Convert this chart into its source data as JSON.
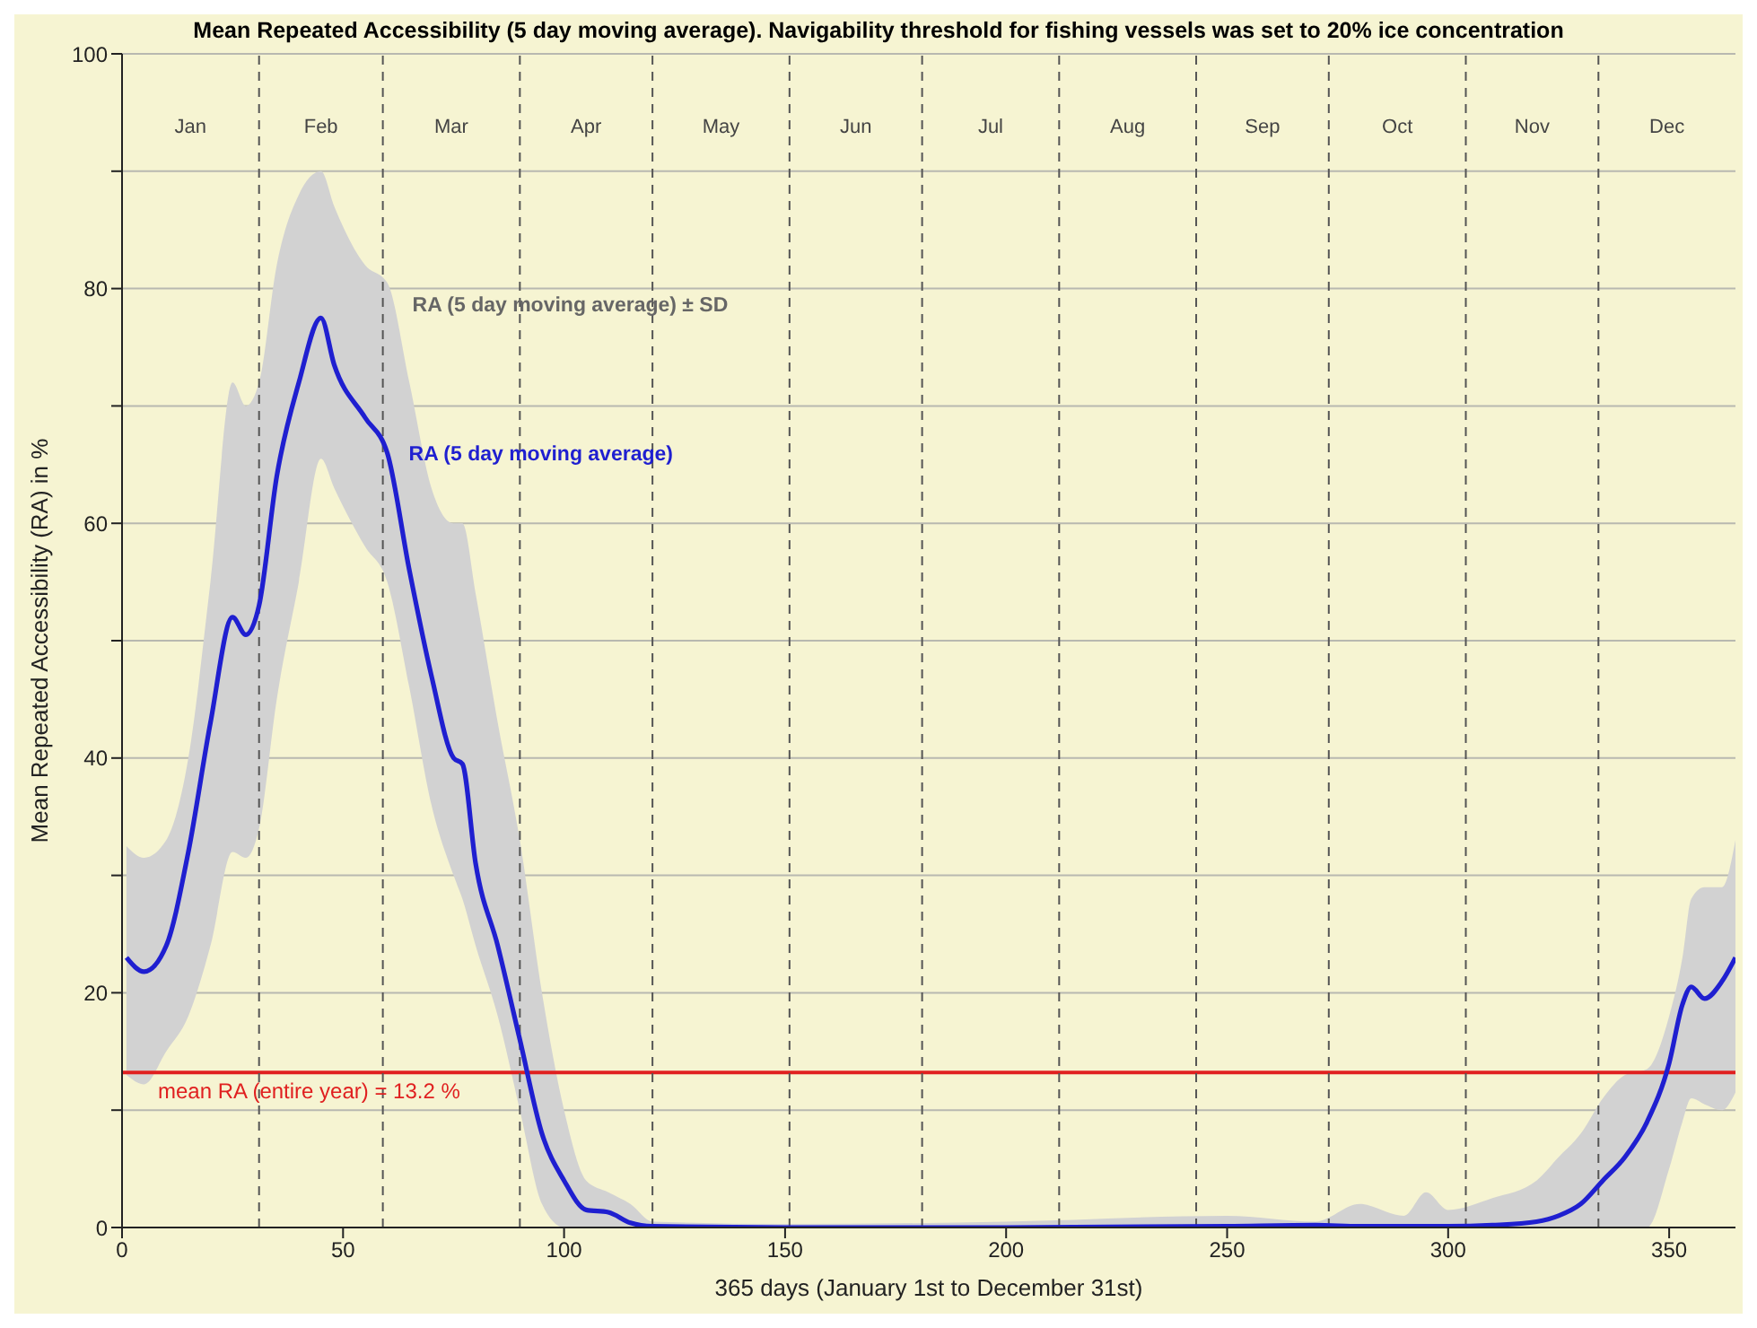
{
  "chart_data": {
    "type": "line",
    "title": "Mean Repeated Accessibility (5 day moving average). Navigability threshold for fishing vessels was set to 20% ice concentration",
    "xlabel": "365 days (January 1st to December 31st)",
    "ylabel": "Mean Repeated Accessibility (RA) in %",
    "x": [
      1,
      5,
      10,
      15,
      20,
      25,
      28,
      31,
      35,
      40,
      45,
      48,
      55,
      60,
      65,
      70,
      75,
      77,
      80,
      85,
      90,
      95,
      100,
      105,
      110,
      115,
      120,
      150,
      200,
      250,
      270,
      280,
      290,
      295,
      300,
      310,
      320,
      325,
      330,
      335,
      340,
      345,
      350,
      353,
      355,
      358,
      362,
      365
    ],
    "series": [
      {
        "name": "RA (5 day moving average)",
        "color": "#1f1fd0",
        "values": [
          23,
          21.8,
          24,
          32,
          43,
          52,
          50.5,
          53,
          64,
          72,
          77.5,
          73.5,
          69,
          66,
          56,
          47,
          40,
          39.5,
          31,
          24,
          16,
          8,
          4,
          1.5,
          1.3,
          0.4,
          0.1,
          0,
          0,
          0.1,
          0.2,
          0.1,
          0.1,
          0.1,
          0.1,
          0.2,
          0.5,
          1,
          2,
          4,
          6,
          9,
          14,
          19,
          20.5,
          19.5,
          21,
          23
        ],
        "lower": [
          13,
          12.2,
          15,
          18,
          24,
          32,
          31.5,
          34,
          45,
          55,
          65.5,
          63,
          58,
          55,
          46,
          36,
          30,
          28,
          24,
          18,
          10,
          2,
          0,
          0,
          0,
          0,
          0,
          0,
          0,
          0,
          0,
          0,
          0,
          0,
          0,
          0,
          0,
          0,
          0,
          0,
          0,
          0,
          5,
          9,
          11,
          10.5,
          10,
          11.5
        ],
        "upper": [
          32.5,
          31.5,
          33,
          40,
          55,
          72,
          70,
          72,
          82,
          88,
          90,
          87,
          82,
          80.5,
          72,
          63,
          60,
          60,
          54,
          43,
          33,
          20,
          10,
          4,
          3,
          2,
          0.5,
          0.3,
          0.5,
          1,
          0.5,
          2,
          1,
          3,
          1.5,
          2.5,
          4,
          6,
          8,
          11,
          13,
          13.5,
          18,
          23,
          28,
          29,
          29,
          33
        ]
      }
    ],
    "xlim": [
      0,
      365
    ],
    "xticks": [
      0,
      50,
      100,
      150,
      200,
      250,
      300,
      350
    ],
    "ylim": [
      0,
      100
    ],
    "yticks": [
      0,
      {
        "value": 10,
        "label": null
      },
      20,
      {
        "value": 30,
        "label": null
      },
      40,
      {
        "value": 50,
        "label": null
      },
      60,
      {
        "value": 70,
        "label": null
      },
      80,
      {
        "value": 90,
        "label": null
      },
      100
    ],
    "grid": "y",
    "marker": "none",
    "line_style": "solid",
    "ref_lines": [
      {
        "axis": "y",
        "value": 13.2,
        "label": "mean RA (entire year) = 13.2 %",
        "color": "#e02020"
      },
      {
        "axis": "x",
        "value": 31,
        "color": "#555555",
        "line_style": "dashed"
      },
      {
        "axis": "x",
        "value": 59,
        "color": "#555555",
        "line_style": "dashed"
      },
      {
        "axis": "x",
        "value": 90,
        "color": "#555555",
        "line_style": "dashed"
      },
      {
        "axis": "x",
        "value": 120,
        "color": "#555555",
        "line_style": "dashed"
      },
      {
        "axis": "x",
        "value": 151,
        "color": "#555555",
        "line_style": "dashed"
      },
      {
        "axis": "x",
        "value": 181,
        "color": "#555555",
        "line_style": "dashed"
      },
      {
        "axis": "x",
        "value": 212,
        "color": "#555555",
        "line_style": "dashed"
      },
      {
        "axis": "x",
        "value": 243,
        "color": "#555555",
        "line_style": "dashed"
      },
      {
        "axis": "x",
        "value": 273,
        "color": "#555555",
        "line_style": "dashed"
      },
      {
        "axis": "x",
        "value": 304,
        "color": "#555555",
        "line_style": "dashed"
      },
      {
        "axis": "x",
        "value": 334,
        "color": "#555555",
        "line_style": "dashed"
      }
    ],
    "annotations": [
      "RA (5 day moving average) ± SD",
      "Jan",
      "Feb",
      "Mar",
      "Apr",
      "May",
      "Jun",
      "Jul",
      "Aug",
      "Sep",
      "Oct",
      "Nov",
      "Dec"
    ],
    "legend": false
  }
}
